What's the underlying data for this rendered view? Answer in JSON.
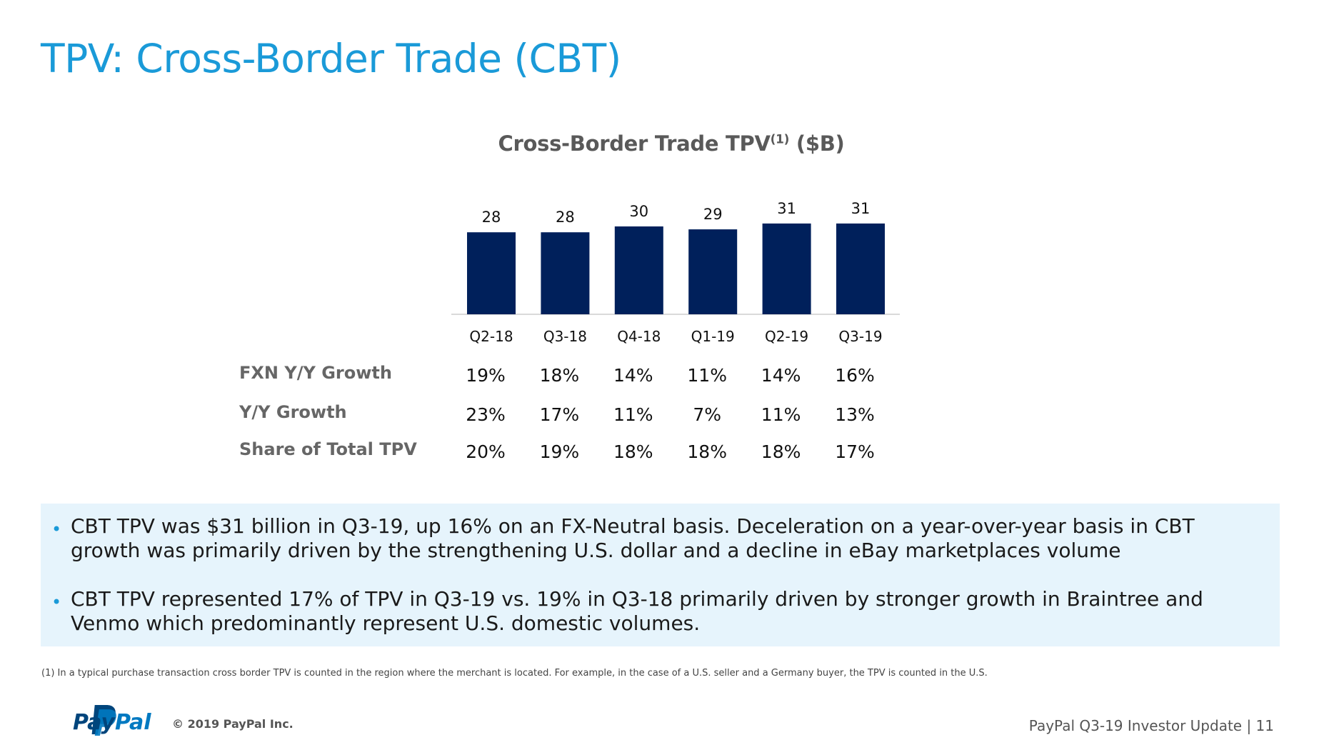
{
  "slide": {
    "title": "TPV: Cross-Border Trade (CBT)",
    "chart_title_main": "Cross-Border Trade TPV",
    "chart_title_sup": "(1)",
    "chart_title_unit": " ($B)"
  },
  "chart_data": {
    "type": "bar",
    "title": "Cross-Border Trade TPV(1) ($B)",
    "categories": [
      "Q2-18",
      "Q3-18",
      "Q4-18",
      "Q1-19",
      "Q2-19",
      "Q3-19"
    ],
    "values": [
      28,
      28,
      30,
      29,
      31,
      31
    ],
    "value_labels": [
      "28",
      "28",
      "30",
      "29",
      "31",
      "31"
    ],
    "ylim": [
      0,
      31
    ],
    "grid": false,
    "bar_color": "#00205b"
  },
  "metrics_table": {
    "rows": [
      {
        "label": "FXN Y/Y Growth",
        "values": [
          "19%",
          "18%",
          "14%",
          "11%",
          "14%",
          "16%"
        ]
      },
      {
        "label": "Y/Y Growth",
        "values": [
          "23%",
          "17%",
          "11%",
          "7%",
          "11%",
          "13%"
        ]
      },
      {
        "label": "Share of Total TPV",
        "values": [
          "20%",
          "19%",
          "18%",
          "18%",
          "18%",
          "17%"
        ]
      }
    ]
  },
  "bullets": [
    "CBT TPV was $31 billion in Q3-19, up 16% on an FX-Neutral basis. Deceleration on a year-over-year basis in CBT growth was primarily driven by the strengthening U.S. dollar and a decline in eBay marketplaces volume",
    "CBT TPV represented 17% of TPV in Q3-19 vs. 19% in Q3-18 primarily driven by stronger growth in Braintree and Venmo which predominantly represent U.S. domestic volumes."
  ],
  "bullet_marker": "•",
  "footnote": "(1) In a typical purchase transaction cross border TPV is counted in the region where the merchant is located.  For example, in the case of a U.S. seller and a Germany buyer, the TPV is counted in the U.S.",
  "footer": {
    "logo_pay": "Pay",
    "logo_pal": "Pal",
    "copyright": "© 2019 PayPal Inc.",
    "page_label": "PayPal Q3-19 Investor Update | 11"
  },
  "colors": {
    "title": "#1a9ad8",
    "bar": "#00205b",
    "box_background": "#e6f4fc"
  }
}
